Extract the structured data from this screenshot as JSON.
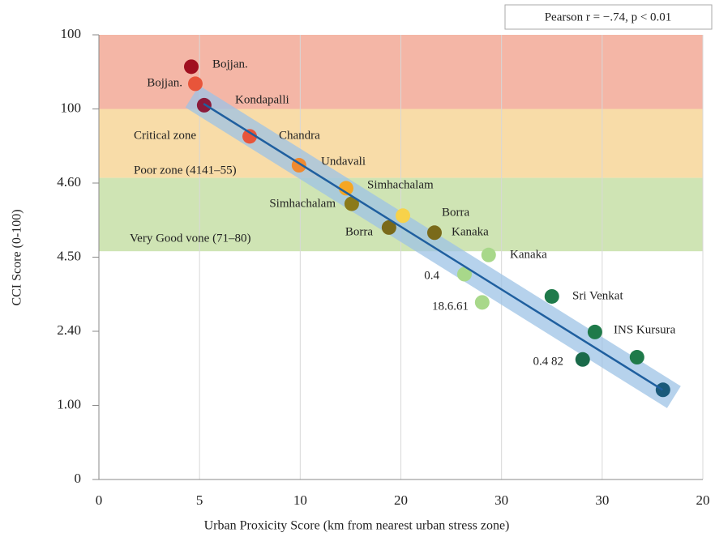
{
  "chart_data": {
    "type": "scatter",
    "annotation": "Pearson r = −.74, p < 0.01",
    "xlabel": "Urban Proxicity Score (km  from nearest urban stress zone)",
    "ylabel": "CCI Score (0-100)",
    "xlim": [
      0,
      30
    ],
    "ylim": [
      0,
      6
    ],
    "xticks": [
      0,
      5,
      10,
      {
        "value": 15,
        "label": "20"
      },
      {
        "value": 20,
        "label": "30"
      },
      {
        "value": 25,
        "label": "30"
      },
      {
        "value": 30,
        "label": "20"
      }
    ],
    "yticks": [
      0,
      {
        "value": 1,
        "label": "1.00"
      },
      {
        "value": 2,
        "label": "2.40"
      },
      {
        "value": 3,
        "label": "4.50"
      },
      {
        "value": 4,
        "label": "4.60"
      },
      {
        "value": 5,
        "label": "100"
      },
      {
        "value": 6,
        "label": "100"
      }
    ],
    "grid": true,
    "zones": [
      {
        "label": "Critical zone",
        "ymin": 5,
        "ymax": 6,
        "color": "#f4b6a6"
      },
      {
        "label": "Poor zone (4141–55)",
        "ymin": 4.07,
        "ymax": 5,
        "color": "#f8dca8"
      },
      {
        "label": "Very Good vone (71–80)",
        "ymin": 3.08,
        "ymax": 4.07,
        "color": "#cfe4b4"
      }
    ],
    "trend": {
      "x": [
        5.2,
        28
      ],
      "y": [
        5.07,
        1.21
      ],
      "color": "#1f5f9f",
      "band_color": "#9ec3e6"
    },
    "series": [
      {
        "x": [
          4.59,
          4.79,
          5.23,
          7.49,
          9.94,
          12.28,
          12.56,
          15.1,
          14.41,
          16.67,
          19.36,
          18.16,
          19.04,
          22.5,
          24.64,
          24.03,
          26.73,
          28.02
        ],
        "values": [
          5.57,
          5.34,
          5.05,
          4.63,
          4.24,
          3.93,
          3.72,
          3.56,
          3.4,
          3.33,
          3.03,
          2.77,
          2.39,
          2.47,
          1.99,
          1.62,
          1.65,
          1.21
        ],
        "colors": [
          "#a01020",
          "#e8553a",
          "#8b1a3a",
          "#e8553a",
          "#f08a30",
          "#f5a623",
          "#8b7a1a",
          "#f7d24a",
          "#7a6a1a",
          "#7a6a1a",
          "#a8d88a",
          "#a8d88a",
          "#a8d88a",
          "#1f7a4a",
          "#1f7a4a",
          "#1a6a4a",
          "#1f7a4a",
          "#1a5a7a"
        ],
        "labels": [
          "Bojjan.",
          "Bojjan.",
          "Kondapalli",
          "Chandra",
          "Undavali",
          "Simhachalam",
          "Simhachalam",
          "Borra",
          "Borra",
          "Kanaka",
          "Kanaka",
          "0.4",
          "18.6.61",
          "Sri Venkat",
          "INS Kursura",
          "0.4 82",
          null,
          null
        ]
      }
    ]
  }
}
